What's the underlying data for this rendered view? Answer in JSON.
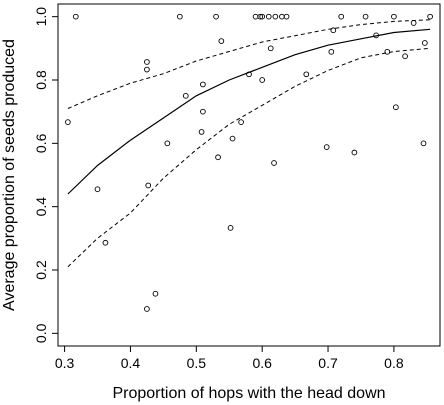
{
  "chart_data": {
    "type": "scatter",
    "xlabel": "Proportion of hops with the head down",
    "ylabel": "Average proportion of seeds produced",
    "xlim": [
      0.29,
      0.87
    ],
    "ylim": [
      -0.04,
      1.04
    ],
    "xticks": [
      0.3,
      0.4,
      0.5,
      0.6,
      0.7,
      0.8
    ],
    "yticks": [
      0.0,
      0.2,
      0.4,
      0.6,
      0.8,
      1.0
    ],
    "xtick_labels": [
      "0.3",
      "0.4",
      "0.5",
      "0.6",
      "0.7",
      "0.8"
    ],
    "ytick_labels": [
      "0.0",
      "0.2",
      "0.4",
      "0.6",
      "0.8",
      "1.0"
    ],
    "grid": false,
    "points": [
      {
        "x": 0.305,
        "y": 0.667
      },
      {
        "x": 0.317,
        "y": 1.0
      },
      {
        "x": 0.35,
        "y": 0.455
      },
      {
        "x": 0.362,
        "y": 0.286
      },
      {
        "x": 0.425,
        "y": 0.857
      },
      {
        "x": 0.425,
        "y": 0.833
      },
      {
        "x": 0.427,
        "y": 0.467
      },
      {
        "x": 0.425,
        "y": 0.077
      },
      {
        "x": 0.438,
        "y": 0.125
      },
      {
        "x": 0.456,
        "y": 0.6
      },
      {
        "x": 0.475,
        "y": 1.0
      },
      {
        "x": 0.484,
        "y": 0.75
      },
      {
        "x": 0.508,
        "y": 0.636
      },
      {
        "x": 0.51,
        "y": 0.786
      },
      {
        "x": 0.51,
        "y": 0.7
      },
      {
        "x": 0.53,
        "y": 1.0
      },
      {
        "x": 0.533,
        "y": 0.556
      },
      {
        "x": 0.538,
        "y": 0.923
      },
      {
        "x": 0.552,
        "y": 0.333
      },
      {
        "x": 0.555,
        "y": 0.615
      },
      {
        "x": 0.568,
        "y": 0.667
      },
      {
        "x": 0.58,
        "y": 0.818
      },
      {
        "x": 0.59,
        "y": 1.0
      },
      {
        "x": 0.597,
        "y": 1.0
      },
      {
        "x": 0.6,
        "y": 1.0
      },
      {
        "x": 0.6,
        "y": 0.8
      },
      {
        "x": 0.61,
        "y": 1.0
      },
      {
        "x": 0.613,
        "y": 0.9
      },
      {
        "x": 0.618,
        "y": 0.538
      },
      {
        "x": 0.62,
        "y": 1.0
      },
      {
        "x": 0.63,
        "y": 1.0
      },
      {
        "x": 0.637,
        "y": 1.0
      },
      {
        "x": 0.667,
        "y": 0.818
      },
      {
        "x": 0.698,
        "y": 0.588
      },
      {
        "x": 0.705,
        "y": 0.889
      },
      {
        "x": 0.708,
        "y": 0.957
      },
      {
        "x": 0.72,
        "y": 1.0
      },
      {
        "x": 0.74,
        "y": 0.571
      },
      {
        "x": 0.757,
        "y": 1.0
      },
      {
        "x": 0.773,
        "y": 0.941
      },
      {
        "x": 0.79,
        "y": 0.889
      },
      {
        "x": 0.8,
        "y": 1.0
      },
      {
        "x": 0.803,
        "y": 0.714
      },
      {
        "x": 0.817,
        "y": 0.875
      },
      {
        "x": 0.83,
        "y": 0.98
      },
      {
        "x": 0.845,
        "y": 0.6
      },
      {
        "x": 0.847,
        "y": 0.917
      },
      {
        "x": 0.855,
        "y": 1.0
      }
    ],
    "fit_line": {
      "x": [
        0.305,
        0.35,
        0.4,
        0.45,
        0.5,
        0.55,
        0.6,
        0.65,
        0.7,
        0.75,
        0.8,
        0.855
      ],
      "y": [
        0.44,
        0.53,
        0.61,
        0.68,
        0.75,
        0.8,
        0.84,
        0.88,
        0.91,
        0.93,
        0.95,
        0.96
      ]
    },
    "ci_upper": {
      "x": [
        0.305,
        0.35,
        0.4,
        0.45,
        0.5,
        0.55,
        0.6,
        0.65,
        0.7,
        0.75,
        0.8,
        0.855
      ],
      "y": [
        0.71,
        0.75,
        0.79,
        0.82,
        0.86,
        0.89,
        0.92,
        0.94,
        0.96,
        0.975,
        0.985,
        0.99
      ]
    },
    "ci_lower": {
      "x": [
        0.305,
        0.35,
        0.4,
        0.45,
        0.5,
        0.55,
        0.6,
        0.65,
        0.7,
        0.75,
        0.8,
        0.855
      ],
      "y": [
        0.21,
        0.3,
        0.38,
        0.49,
        0.58,
        0.66,
        0.72,
        0.78,
        0.83,
        0.87,
        0.89,
        0.9
      ]
    }
  }
}
